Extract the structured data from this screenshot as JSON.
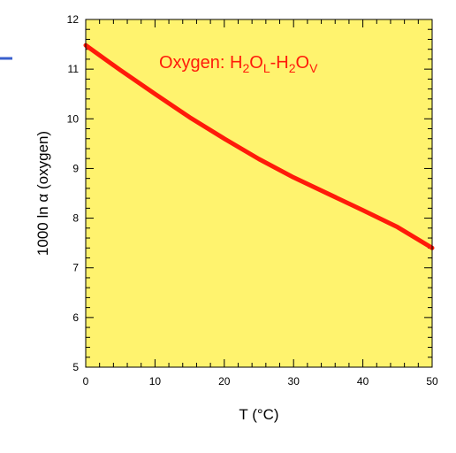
{
  "chart_data": {
    "type": "line",
    "title": "",
    "xlabel": "T (°C)",
    "ylabel": "1000 ln α (oxygen)",
    "xlim": [
      0,
      50
    ],
    "ylim": [
      5,
      12
    ],
    "x_ticks": [
      0,
      10,
      20,
      30,
      40,
      50
    ],
    "y_ticks": [
      5,
      6,
      7,
      8,
      9,
      10,
      11,
      12
    ],
    "x_tick_labels": [
      "0",
      "10",
      "20",
      "30",
      "40",
      "50"
    ],
    "y_tick_labels": [
      "5",
      "6",
      "7",
      "8",
      "9",
      "10",
      "11",
      "12"
    ],
    "grid": false,
    "background_color": "#FFF36E",
    "series": [
      {
        "color": "#FF1A0A",
        "x": [
          0,
          5,
          10,
          15,
          20,
          25,
          30,
          35,
          40,
          45,
          50
        ],
        "y": [
          11.48,
          10.98,
          10.5,
          10.03,
          9.6,
          9.19,
          8.82,
          8.49,
          8.16,
          7.82,
          7.4
        ]
      }
    ],
    "annotation": {
      "prefix": "Oxygen: H",
      "sub1": "2",
      "mid1": "O",
      "sub2": "L",
      "mid2": "-H",
      "sub3": "2",
      "mid3": "O",
      "sub4": "V",
      "color": "#FF1A0A"
    }
  }
}
